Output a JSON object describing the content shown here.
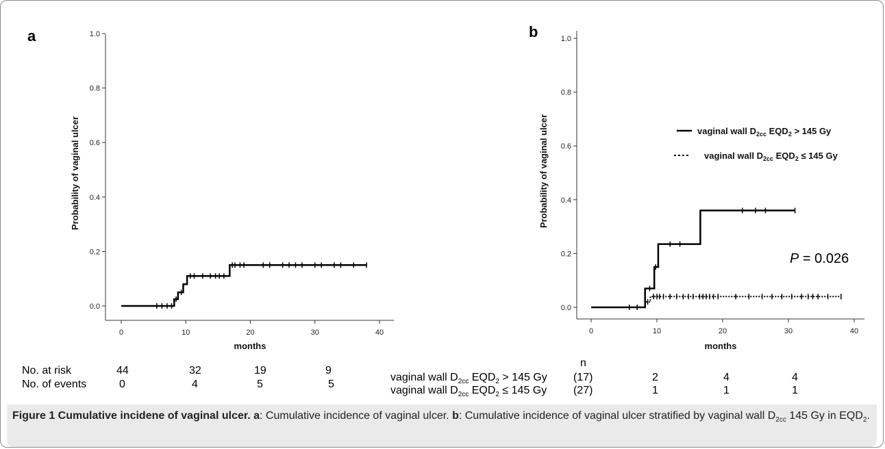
{
  "panels": [
    {
      "letter": "a",
      "chart_data": {
        "type": "line",
        "step": true,
        "xlabel": "months",
        "ylabel": "Probability of vaginal ulcer",
        "xlim": [
          0,
          40
        ],
        "ylim": [
          0,
          1.0
        ],
        "xticks": [
          "0",
          "10",
          "20",
          "30",
          "40"
        ],
        "yticks": [
          "0.0",
          "0.2",
          "0.4",
          "0.6",
          "0.8",
          "1.0"
        ],
        "series": [
          {
            "style": "solid",
            "x": [
              0,
              8.2,
              8.2,
              8.8,
              8.8,
              9.6,
              9.6,
              10.2,
              10.2,
              16.8,
              16.8,
              38
            ],
            "y": [
              0,
              0,
              0.025,
              0.025,
              0.05,
              0.05,
              0.08,
              0.08,
              0.11,
              0.11,
              0.15,
              0.15
            ],
            "censored_x": [
              5.5,
              6.3,
              7.1,
              7.8,
              8.5,
              9.3,
              10.7,
              11.3,
              12.6,
              13.8,
              14.6,
              15.2,
              15.9,
              17.2,
              17.6,
              18.4,
              19.0,
              22.0,
              23.0,
              25.0,
              26.0,
              27.0,
              28.0,
              30.0,
              31.0,
              33.0,
              34.0,
              36.0,
              38.0
            ]
          }
        ]
      },
      "risk_table": {
        "rows": [
          {
            "label": "No. at risk",
            "values": [
              "44",
              "32",
              "19",
              "9"
            ]
          },
          {
            "label": "No. of events",
            "values": [
              "0",
              "4",
              "5",
              "5"
            ]
          }
        ]
      }
    },
    {
      "letter": "b",
      "chart_data": {
        "type": "line",
        "step": true,
        "xlabel": "months",
        "ylabel": "Probability of vaginal ulcer",
        "xlim": [
          0,
          40
        ],
        "ylim": [
          0,
          1.0
        ],
        "xticks": [
          "0",
          "10",
          "20",
          "30",
          "40"
        ],
        "yticks": [
          "0.0",
          "0.2",
          "0.4",
          "0.6",
          "0.8",
          "1.0"
        ],
        "legend_position": "right",
        "annotation": {
          "p_label": "P",
          "p_value": " = 0.026"
        },
        "series": [
          {
            "legend": {
              "pre": "vaginal wall D",
              "sub1": "2cc",
              "mid": " EQD",
              "sub2": "2",
              "post": " > 145 Gy"
            },
            "style": "solid",
            "x": [
              0,
              8.2,
              8.2,
              9.6,
              9.6,
              10.2,
              10.2,
              16.6,
              16.6,
              31
            ],
            "y": [
              0,
              0,
              0.07,
              0.07,
              0.15,
              0.15,
              0.235,
              0.235,
              0.36,
              0.36
            ],
            "censored_x": [
              5.8,
              7.0,
              8.9,
              9.8,
              12.0,
              13.5,
              23.0,
              25.0,
              26.5,
              31.0
            ]
          },
          {
            "legend": {
              "pre": "vaginal wall D",
              "sub1": "2cc",
              "mid": " EQD",
              "sub2": "2",
              "post": " ≤ 145 Gy"
            },
            "style": "dotted",
            "x": [
              0,
              8.2,
              8.2,
              9.0,
              9.0,
              38
            ],
            "y": [
              0,
              0,
              0.02,
              0.02,
              0.04,
              0.04
            ],
            "censored_x": [
              8.6,
              9.5,
              10.0,
              10.4,
              11.0,
              12.0,
              13.0,
              14.0,
              14.8,
              15.5,
              16.5,
              17.0,
              17.5,
              18.0,
              18.6,
              19.3,
              22.0,
              24.0,
              26.0,
              27.5,
              29.0,
              30.5,
              32.0,
              33.0,
              33.7,
              34.5,
              36.0,
              38.0
            ]
          }
        ]
      },
      "risk_table": {
        "n_header": "n",
        "rows": [
          {
            "label": {
              "pre": "vaginal wall D",
              "sub1": "2cc",
              "mid": " EQD",
              "sub2": "2",
              "post": " > 145 Gy"
            },
            "n": "(17)",
            "values": [
              "2",
              "4",
              "4"
            ]
          },
          {
            "label": {
              "pre": "vaginal wall D",
              "sub1": "2cc",
              "mid": " EQD",
              "sub2": "2",
              "post": " ≤ 145 Gy"
            },
            "n": "(27)",
            "values": [
              "1",
              "1",
              "1"
            ]
          }
        ]
      }
    }
  ],
  "caption": {
    "title": "Figure 1 Cumulative incidene of vaginal ulcer.",
    "a_key": "a",
    "a_text": ": Cumulative incidence of vaginal ulcer. ",
    "b_key": "b",
    "b_text": ": Cumulative incidence of vaginal ulcer stratified by vaginal wall D",
    "b_sub": "2cc",
    "b_text2": " 145 Gy in EQD",
    "b_sub2": "2",
    "b_end": "."
  }
}
